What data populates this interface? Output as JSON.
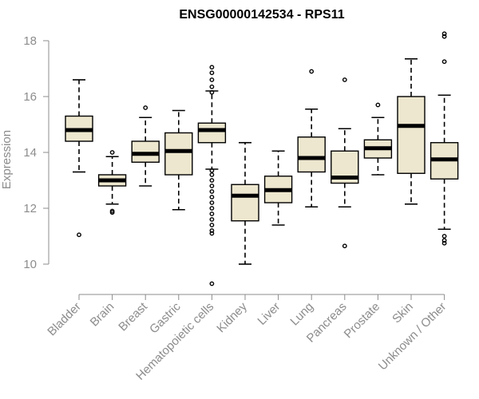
{
  "chart_data": {
    "type": "boxplot",
    "title": "ENSG00000142534 - RPS11",
    "ylabel": "Expression",
    "xlabel": "",
    "ylim": [
      9.2,
      18.4
    ],
    "yticks": [
      10,
      12,
      14,
      16,
      18
    ],
    "grid": false,
    "colors": {
      "box_fill": "#ede7cf",
      "stroke": "#000000",
      "axis": "#8c8c8c"
    },
    "categories": [
      "Bladder",
      "Brain",
      "Breast",
      "Gastric",
      "Hematopoietic cells",
      "Kidney",
      "Liver",
      "Lung",
      "Pancreas",
      "Prostate",
      "Skin",
      "Unknown / Other"
    ],
    "boxes": [
      {
        "min": 13.3,
        "q1": 14.4,
        "median": 14.8,
        "q3": 15.3,
        "max": 16.6,
        "outliers": [
          11.05
        ]
      },
      {
        "min": 12.15,
        "q1": 12.8,
        "median": 13.0,
        "q3": 13.2,
        "max": 13.85,
        "outliers": [
          11.85,
          11.9,
          14.0
        ]
      },
      {
        "min": 12.8,
        "q1": 13.65,
        "median": 13.95,
        "q3": 14.4,
        "max": 15.25,
        "outliers": [
          15.6
        ]
      },
      {
        "min": 11.95,
        "q1": 13.2,
        "median": 14.05,
        "q3": 14.7,
        "max": 15.5,
        "outliers": []
      },
      {
        "min": 13.4,
        "q1": 14.35,
        "median": 14.8,
        "q3": 15.05,
        "max": 16.2,
        "outliers": [
          17.05,
          16.85,
          16.6,
          16.35,
          16.15,
          13.35,
          13.2,
          13.0,
          12.8,
          12.6,
          12.4,
          12.2,
          12.0,
          11.8,
          11.6,
          11.4,
          11.2,
          11.1,
          9.3
        ]
      },
      {
        "min": 10.0,
        "q1": 11.55,
        "median": 12.45,
        "q3": 12.85,
        "max": 14.35,
        "outliers": []
      },
      {
        "min": 11.4,
        "q1": 12.2,
        "median": 12.65,
        "q3": 13.15,
        "max": 14.05,
        "outliers": []
      },
      {
        "min": 12.05,
        "q1": 13.3,
        "median": 13.8,
        "q3": 14.55,
        "max": 15.55,
        "outliers": [
          16.9
        ]
      },
      {
        "min": 12.05,
        "q1": 12.9,
        "median": 13.1,
        "q3": 14.05,
        "max": 14.85,
        "outliers": [
          16.6,
          10.65
        ]
      },
      {
        "min": 13.2,
        "q1": 13.8,
        "median": 14.15,
        "q3": 14.45,
        "max": 15.25,
        "outliers": [
          15.7
        ]
      },
      {
        "min": 12.15,
        "q1": 13.25,
        "median": 14.95,
        "q3": 16.0,
        "max": 17.35,
        "outliers": []
      },
      {
        "min": 11.25,
        "q1": 13.05,
        "median": 13.75,
        "q3": 14.35,
        "max": 16.05,
        "outliers": [
          18.25,
          18.15,
          17.25,
          11.0,
          10.85,
          10.75
        ]
      }
    ]
  }
}
